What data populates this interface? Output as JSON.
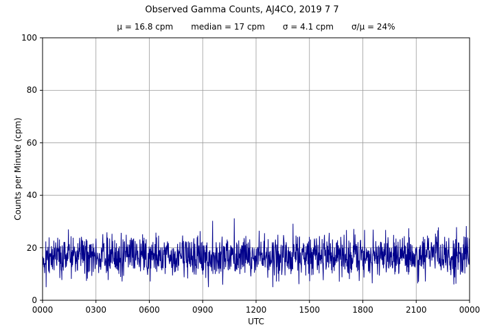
{
  "chart_data": {
    "type": "line",
    "title": "Observed Gamma Counts, AJ4CO, 2019 7 7",
    "subtitle_items": [
      "μ = 16.8 cpm",
      "median = 17 cpm",
      "σ = 4.1 cpm",
      "σ/μ = 24%"
    ],
    "stats": {
      "mean_cpm": 16.8,
      "median_cpm": 17,
      "sigma_cpm": 4.1,
      "sigma_over_mu_percent": 24
    },
    "xlabel": "UTC",
    "ylabel": "Counts per Minute (cpm)",
    "x_tick_labels": [
      "0000",
      "0300",
      "0600",
      "0900",
      "1200",
      "1500",
      "1800",
      "2100",
      "0000"
    ],
    "y_tick_labels": [
      "0",
      "20",
      "40",
      "60",
      "80",
      "100"
    ],
    "y_ticks": [
      0,
      20,
      40,
      60,
      80,
      100
    ],
    "ylim": [
      0,
      100
    ],
    "x_range_hours": [
      0,
      24
    ],
    "grid": true,
    "grid_color": "#9a9a9a",
    "line_color": "#00008b",
    "axis_color": "#000000",
    "series_spec": {
      "description": "one gamma count sample per minute over 24 hours, gaussian noise about the mean",
      "n_points": 1440,
      "mean": 16.8,
      "sigma": 4.1,
      "min_clip": 5,
      "max_clip": 33,
      "seed": 20190707
    }
  }
}
